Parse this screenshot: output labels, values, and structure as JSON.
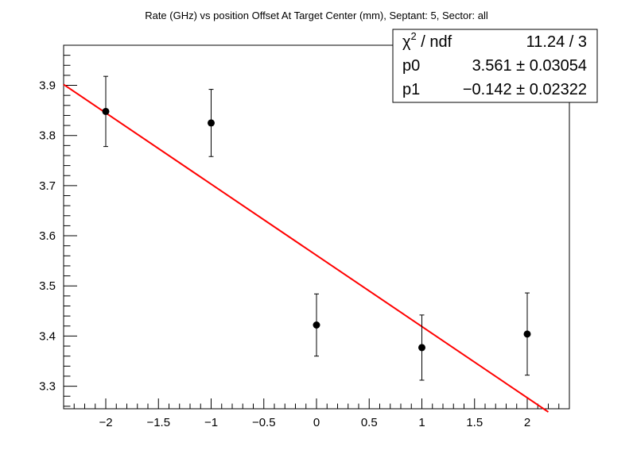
{
  "chart_data": {
    "type": "scatter",
    "title": "Rate (GHz) vs position Offset At Target Center (mm), Septant: 5, Sector: all",
    "xlabel": "",
    "ylabel": "",
    "xlim": [
      -2.4,
      2.4
    ],
    "ylim": [
      3.255,
      3.98
    ],
    "x_ticks": [
      -2,
      -1.5,
      -1,
      -0.5,
      0,
      0.5,
      1,
      1.5,
      2
    ],
    "x_tick_labels": [
      "−2",
      "−1.5",
      "−1",
      "−0.5",
      "0",
      "0.5",
      "1",
      "1.5",
      "2"
    ],
    "y_ticks": [
      3.3,
      3.4,
      3.5,
      3.6,
      3.7,
      3.8,
      3.9
    ],
    "y_tick_labels": [
      "3.3",
      "3.4",
      "3.5",
      "3.6",
      "3.7",
      "3.8",
      "3.9"
    ],
    "grid": false,
    "points": [
      {
        "x": -2,
        "y": 3.848,
        "err": 0.07
      },
      {
        "x": -1,
        "y": 3.825,
        "err": 0.067
      },
      {
        "x": 0,
        "y": 3.422,
        "err": 0.062
      },
      {
        "x": 1,
        "y": 3.377,
        "err": 0.065
      },
      {
        "x": 2,
        "y": 3.404,
        "err": 0.082
      }
    ],
    "fit": {
      "color": "#ff0000",
      "p0": 3.561,
      "p1": -0.142,
      "x_range": [
        -2.4,
        2.2
      ]
    },
    "marker_color": "#000000",
    "stats_box": {
      "placement": "top-right",
      "rows": [
        {
          "label": "χ",
          "sup": "2",
          "label_rest": " / ndf",
          "value": "11.24 / 3"
        },
        {
          "label": "p0",
          "value": "3.561 ± 0.03054"
        },
        {
          "label": "p1",
          "value": "−0.142 ± 0.02322"
        }
      ]
    }
  }
}
